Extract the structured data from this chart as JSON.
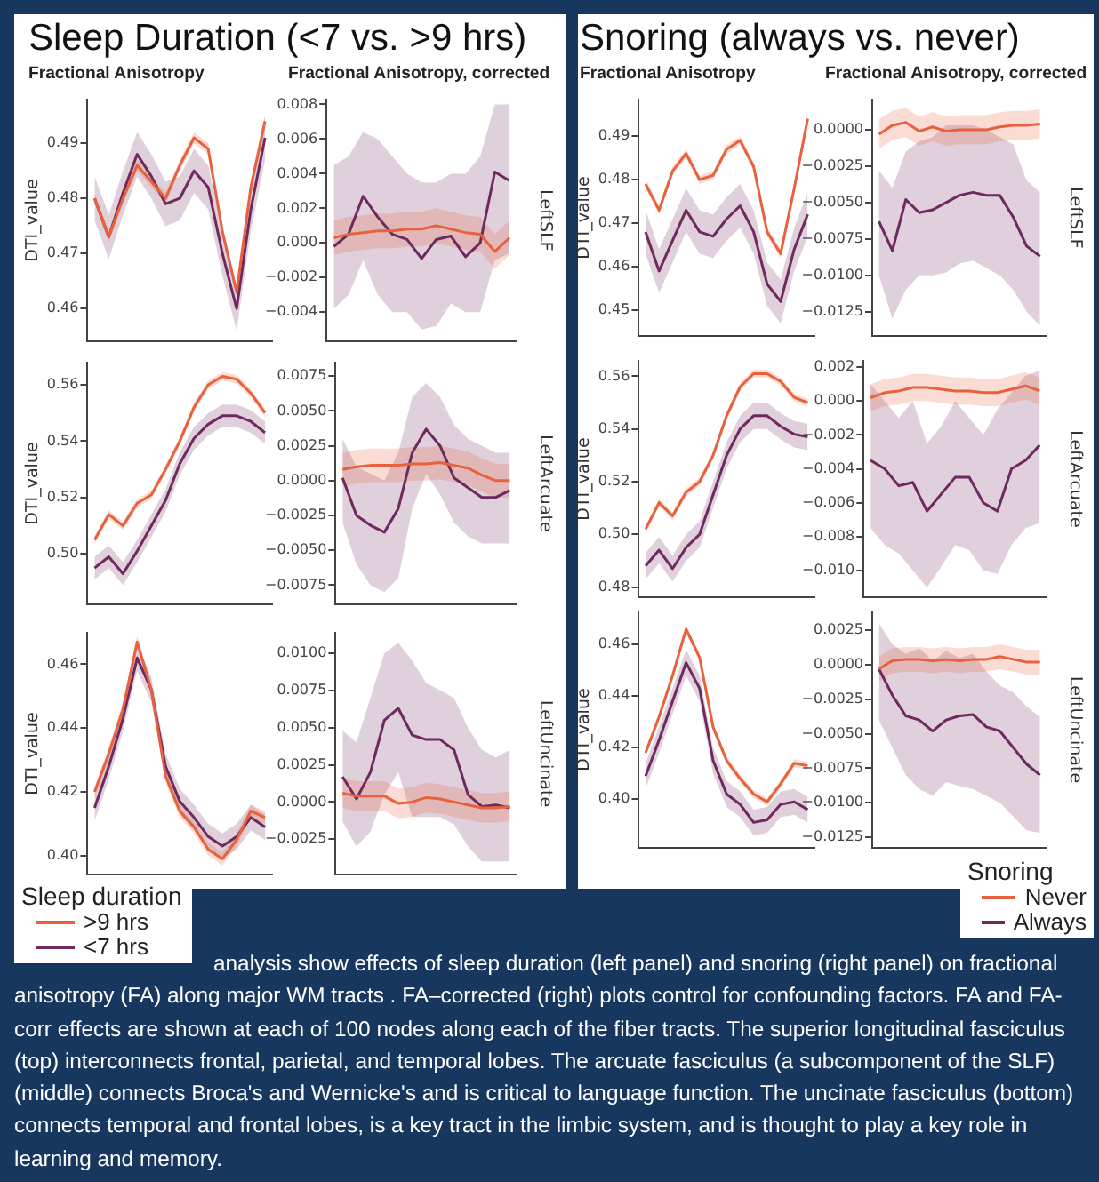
{
  "chart_data": [
    {
      "type": "line",
      "title": "Sleep Duration (<7 vs. >9 hrs)",
      "subtitle": "Fractional Anisotropy",
      "ylabel": "DTI_value",
      "categories": [
        null,
        null,
        null,
        null,
        null,
        null,
        null,
        null,
        null,
        null,
        null,
        null,
        null
      ],
      "ylim": [
        0.454,
        0.498
      ],
      "yticks": [
        0.46,
        0.47,
        0.48,
        0.49
      ],
      "series": [
        {
          "color": "#e8603c",
          "values": [
            0.48,
            0.473,
            0.48,
            0.486,
            0.483,
            0.48,
            0.486,
            0.491,
            0.489,
            0.474,
            0.463,
            0.482,
            0.494
          ],
          "lower": [
            0.479,
            0.472,
            0.479,
            0.485,
            0.482,
            0.479,
            0.485,
            0.49,
            0.488,
            0.473,
            0.462,
            0.481,
            0.493
          ],
          "upper": [
            0.481,
            0.474,
            0.481,
            0.487,
            0.484,
            0.481,
            0.487,
            0.492,
            0.49,
            0.475,
            0.464,
            0.483,
            0.495
          ]
        },
        {
          "color": "#6e2a5e",
          "values": [
            0.48,
            0.473,
            0.481,
            0.488,
            0.484,
            0.479,
            0.48,
            0.485,
            0.482,
            0.47,
            0.46,
            0.478,
            0.491
          ],
          "lower": [
            0.476,
            0.469,
            0.477,
            0.484,
            0.48,
            0.475,
            0.476,
            0.481,
            0.478,
            0.466,
            0.456,
            0.474,
            0.487
          ],
          "upper": [
            0.484,
            0.477,
            0.485,
            0.492,
            0.488,
            0.483,
            0.484,
            0.489,
            0.486,
            0.474,
            0.464,
            0.482,
            0.495
          ]
        }
      ]
    },
    {
      "type": "line",
      "subtitle": "Fractional Anisotropy, corrected",
      "y2label": "LeftSLF",
      "categories": [
        null,
        null,
        null,
        null,
        null,
        null,
        null,
        null,
        null,
        null,
        null,
        null,
        null
      ],
      "ylim": [
        -0.0057,
        0.0083
      ],
      "yticks": [
        {
          "value": -0.004,
          "label": "−0.004"
        },
        {
          "value": -0.002,
          "label": "−0.002"
        },
        {
          "value": 0,
          "label": "0.000"
        },
        0.002,
        0.004,
        0.006,
        0.008
      ],
      "series": [
        {
          "color": "#e8603c",
          "values": [
            0.0003,
            0.0005,
            0.0006,
            0.0007,
            0.0007,
            0.0008,
            0.0008,
            0.001,
            0.0008,
            0.0006,
            0.0005,
            -0.0005,
            0.0003
          ],
          "lower": [
            -0.0007,
            -0.0005,
            -0.0004,
            -0.0003,
            -0.0003,
            -0.0002,
            -0.0002,
            0.0,
            -0.0002,
            -0.0004,
            -0.0005,
            -0.0015,
            -0.0007
          ],
          "upper": [
            0.0013,
            0.0015,
            0.0016,
            0.0017,
            0.0017,
            0.0018,
            0.0018,
            0.002,
            0.0018,
            0.0016,
            0.0015,
            0.0005,
            0.0013
          ]
        },
        {
          "color": "#6e2a5e",
          "values": [
            -0.0002,
            0.0005,
            0.0027,
            0.0015,
            0.0005,
            0.0002,
            -0.0009,
            0.0002,
            0.0004,
            -0.0008,
            0.0,
            0.0041,
            0.0036
          ],
          "lower": [
            -0.0038,
            -0.003,
            -0.001,
            -0.003,
            -0.004,
            -0.004,
            -0.005,
            -0.0048,
            -0.0035,
            -0.004,
            -0.004,
            -0.001,
            -0.0006
          ],
          "upper": [
            0.0045,
            0.005,
            0.0064,
            0.006,
            0.005,
            0.004,
            0.0035,
            0.0035,
            0.004,
            0.004,
            0.005,
            0.008,
            0.008
          ]
        }
      ]
    },
    {
      "type": "line",
      "ylabel": "DTI_value",
      "categories": [
        null,
        null,
        null,
        null,
        null,
        null,
        null,
        null,
        null,
        null,
        null,
        null,
        null
      ],
      "ylim": [
        0.482,
        0.568
      ],
      "yticks": [
        {
          "value": 0.5,
          "label": "0.50"
        },
        0.52,
        0.54,
        0.56
      ],
      "series": [
        {
          "color": "#e8603c",
          "values": [
            0.505,
            0.514,
            0.51,
            0.518,
            0.521,
            0.53,
            0.54,
            0.552,
            0.56,
            0.563,
            0.562,
            0.557,
            0.55
          ],
          "lower": [
            0.5035,
            0.5125,
            0.5085,
            0.5165,
            0.5195,
            0.5285,
            0.5385,
            0.5505,
            0.5585,
            0.5615,
            0.5605,
            0.5555,
            0.5485
          ],
          "upper": [
            0.5065,
            0.5155,
            0.5115,
            0.5195,
            0.5225,
            0.5315,
            0.5415,
            0.5535,
            0.5615,
            0.5645,
            0.5635,
            0.5585,
            0.5515
          ]
        },
        {
          "color": "#6e2a5e",
          "values": [
            0.495,
            0.499,
            0.493,
            0.501,
            0.51,
            0.519,
            0.532,
            0.541,
            0.546,
            0.549,
            0.549,
            0.547,
            0.543
          ],
          "lower": [
            0.491,
            0.495,
            0.489,
            0.497,
            0.506,
            0.515,
            0.528,
            0.537,
            0.542,
            0.545,
            0.545,
            0.543,
            0.539
          ],
          "upper": [
            0.499,
            0.503,
            0.497,
            0.505,
            0.514,
            0.523,
            0.536,
            0.545,
            0.55,
            0.553,
            0.553,
            0.551,
            0.547
          ]
        }
      ]
    },
    {
      "type": "line",
      "y2label": "LeftArcuate",
      "categories": [
        null,
        null,
        null,
        null,
        null,
        null,
        null,
        null,
        null,
        null,
        null,
        null,
        null
      ],
      "ylim": [
        -0.0089,
        0.0085
      ],
      "yticks": [
        {
          "value": -0.0075,
          "label": "−0.0075"
        },
        {
          "value": -0.005,
          "label": "−0.0050"
        },
        {
          "value": -0.0025,
          "label": "−0.0025"
        },
        {
          "value": 0,
          "label": "0.0000"
        },
        0.0025,
        {
          "value": 0.005,
          "label": "0.0050"
        },
        0.0075
      ],
      "series": [
        {
          "color": "#e8603c",
          "values": [
            0.0008,
            0.001,
            0.0011,
            0.0011,
            0.0011,
            0.0012,
            0.0012,
            0.0013,
            0.0011,
            0.0009,
            0.0004,
            0.0,
            0.0
          ],
          "lower": [
            -0.0004,
            -0.0002,
            -0.0001,
            -0.0001,
            -0.0001,
            0.0,
            0.0,
            0.0001,
            -0.0001,
            -0.0003,
            -0.0008,
            -0.0012,
            -0.0012
          ],
          "upper": [
            0.002,
            0.0022,
            0.0023,
            0.0023,
            0.0023,
            0.0024,
            0.0024,
            0.0025,
            0.0023,
            0.0021,
            0.0016,
            0.0012,
            0.0012
          ]
        },
        {
          "color": "#6e2a5e",
          "values": [
            0.0002,
            -0.0025,
            -0.0032,
            -0.0037,
            -0.002,
            0.002,
            0.0037,
            0.0025,
            0.0002,
            -0.0005,
            -0.0012,
            -0.0012,
            -0.0007
          ],
          "lower": [
            -0.003,
            -0.006,
            -0.0075,
            -0.008,
            -0.007,
            -0.002,
            0.0005,
            -0.001,
            -0.003,
            -0.004,
            -0.0045,
            -0.0045,
            -0.0045
          ],
          "upper": [
            0.003,
            0.001,
            0.0005,
            0.0,
            0.002,
            0.006,
            0.007,
            0.006,
            0.004,
            0.003,
            0.0025,
            0.002,
            0.002
          ]
        }
      ]
    },
    {
      "type": "line",
      "ylabel": "DTI_value",
      "legend": "bottom left",
      "legend_title": "Sleep duration",
      "categories": [
        null,
        null,
        null,
        null,
        null,
        null,
        null,
        null,
        null,
        null,
        null,
        null,
        null
      ],
      "ylim": [
        0.394,
        0.47
      ],
      "yticks": [
        {
          "value": 0.4,
          "label": "0.40"
        },
        0.42,
        0.44,
        0.46
      ],
      "series": [
        {
          "name": ">9 hrs",
          "color": "#e8603c",
          "values": [
            0.42,
            0.432,
            0.446,
            0.467,
            0.452,
            0.425,
            0.414,
            0.409,
            0.402,
            0.399,
            0.405,
            0.414,
            0.412
          ],
          "lower": [
            0.418,
            0.43,
            0.444,
            0.465,
            0.45,
            0.423,
            0.412,
            0.407,
            0.4,
            0.397,
            0.403,
            0.412,
            0.41
          ],
          "upper": [
            0.422,
            0.434,
            0.448,
            0.469,
            0.454,
            0.427,
            0.416,
            0.411,
            0.404,
            0.401,
            0.407,
            0.416,
            0.414
          ]
        },
        {
          "name": "<7 hrs",
          "color": "#6e2a5e",
          "values": [
            0.415,
            0.428,
            0.443,
            0.462,
            0.452,
            0.428,
            0.417,
            0.412,
            0.406,
            0.403,
            0.406,
            0.412,
            0.409
          ],
          "lower": [
            0.411,
            0.424,
            0.439,
            0.458,
            0.448,
            0.424,
            0.413,
            0.408,
            0.402,
            0.399,
            0.402,
            0.408,
            0.405
          ],
          "upper": [
            0.419,
            0.432,
            0.447,
            0.466,
            0.456,
            0.432,
            0.421,
            0.416,
            0.41,
            0.407,
            0.41,
            0.416,
            0.413
          ]
        }
      ]
    },
    {
      "type": "line",
      "y2label": "LeftUncinate",
      "categories": [
        null,
        null,
        null,
        null,
        null,
        null,
        null,
        null,
        null,
        null,
        null,
        null,
        null
      ],
      "ylim": [
        -0.0049,
        0.0114
      ],
      "yticks": [
        {
          "value": -0.0025,
          "label": "−0.0025"
        },
        {
          "value": 0,
          "label": "0.0000"
        },
        0.0025,
        {
          "value": 0.005,
          "label": "0.0050"
        },
        0.0075,
        {
          "value": 0.01,
          "label": "0.0100"
        }
      ],
      "series": [
        {
          "color": "#e8603c",
          "values": [
            0.0006,
            0.0004,
            0.0004,
            0.0004,
            -0.0001,
            0.0,
            0.0003,
            0.0002,
            0.0,
            -0.0002,
            -0.0004,
            -0.0004,
            -0.0003
          ],
          "lower": [
            -0.0004,
            -0.0006,
            -0.0006,
            -0.0006,
            -0.0011,
            -0.001,
            -0.0007,
            -0.0008,
            -0.001,
            -0.0012,
            -0.0014,
            -0.0014,
            -0.0013
          ],
          "upper": [
            0.0016,
            0.0014,
            0.0014,
            0.0014,
            0.0009,
            0.001,
            0.0013,
            0.0012,
            0.001,
            0.0008,
            0.0006,
            0.0006,
            0.0007
          ]
        },
        {
          "color": "#6e2a5e",
          "values": [
            0.0017,
            0.0002,
            0.002,
            0.0055,
            0.0063,
            0.0045,
            0.0042,
            0.0042,
            0.0035,
            0.0005,
            -0.0003,
            -0.0002,
            -0.0004
          ],
          "lower": [
            -0.0013,
            -0.003,
            -0.002,
            0.0005,
            0.002,
            -0.001,
            -0.001,
            -0.001,
            -0.0015,
            -0.003,
            -0.004,
            -0.004,
            -0.004
          ],
          "upper": [
            0.0048,
            0.004,
            0.007,
            0.01,
            0.0107,
            0.0095,
            0.008,
            0.0075,
            0.007,
            0.005,
            0.0035,
            0.003,
            0.0035
          ]
        }
      ]
    },
    {
      "type": "line",
      "title": "Snoring (always vs. never)",
      "subtitle": "Fractional Anisotropy",
      "ylabel": "DTI_value",
      "categories": [
        null,
        null,
        null,
        null,
        null,
        null,
        null,
        null,
        null,
        null,
        null,
        null,
        null
      ],
      "ylim": [
        0.444,
        0.4985
      ],
      "yticks": [
        0.45,
        0.46,
        0.47,
        0.48,
        0.49
      ],
      "series": [
        {
          "color": "#e8603c",
          "values": [
            0.479,
            0.473,
            0.482,
            0.486,
            0.48,
            0.481,
            0.487,
            0.489,
            0.483,
            0.468,
            0.463,
            0.478,
            0.494
          ],
          "lower": [
            0.478,
            0.472,
            0.481,
            0.485,
            0.479,
            0.48,
            0.486,
            0.488,
            0.482,
            0.467,
            0.462,
            0.477,
            0.493
          ],
          "upper": [
            0.48,
            0.474,
            0.483,
            0.487,
            0.481,
            0.482,
            0.488,
            0.49,
            0.484,
            0.469,
            0.464,
            0.479,
            0.495
          ]
        },
        {
          "color": "#6e2a5e",
          "values": [
            0.468,
            0.459,
            0.466,
            0.473,
            0.468,
            0.467,
            0.471,
            0.474,
            0.468,
            0.456,
            0.452,
            0.464,
            0.472
          ],
          "lower": [
            0.463,
            0.454,
            0.461,
            0.468,
            0.463,
            0.462,
            0.466,
            0.469,
            0.463,
            0.451,
            0.447,
            0.459,
            0.467
          ],
          "upper": [
            0.473,
            0.464,
            0.471,
            0.478,
            0.473,
            0.472,
            0.476,
            0.479,
            0.473,
            0.461,
            0.457,
            0.469,
            0.477
          ]
        }
      ]
    },
    {
      "type": "line",
      "subtitle": "Fractional Anisotropy, corrected",
      "y2label": "LeftSLF",
      "categories": [
        null,
        null,
        null,
        null,
        null,
        null,
        null,
        null,
        null,
        null,
        null,
        null,
        null
      ],
      "ylim": [
        -0.0142,
        0.0021
      ],
      "yticks": [
        {
          "value": -0.0125,
          "label": "−0.0125"
        },
        {
          "value": -0.01,
          "label": "−0.0100"
        },
        {
          "value": -0.0075,
          "label": "−0.0075"
        },
        {
          "value": -0.005,
          "label": "−0.0050"
        },
        {
          "value": -0.0025,
          "label": "−0.0025"
        },
        {
          "value": 0,
          "label": "0.0000"
        }
      ],
      "series": [
        {
          "color": "#e8603c",
          "values": [
            -0.0003,
            0.0003,
            0.0005,
            -0.0001,
            0.0002,
            -0.0001,
            0.0,
            0.0,
            0.0,
            0.0002,
            0.0003,
            0.0003,
            0.0004
          ],
          "lower": [
            -0.0013,
            -0.0007,
            -0.0005,
            -0.0011,
            -0.0008,
            -0.0011,
            -0.001,
            -0.001,
            -0.001,
            -0.0008,
            -0.0007,
            -0.0007,
            -0.0006
          ],
          "upper": [
            0.0007,
            0.0013,
            0.0015,
            0.0009,
            0.0012,
            0.0009,
            0.001,
            0.001,
            0.001,
            0.0012,
            0.0013,
            0.0013,
            0.0014
          ]
        },
        {
          "color": "#6e2a5e",
          "values": [
            -0.0063,
            -0.0083,
            -0.0048,
            -0.0057,
            -0.0055,
            -0.005,
            -0.0045,
            -0.0043,
            -0.0045,
            -0.0045,
            -0.006,
            -0.008,
            -0.0087
          ],
          "lower": [
            -0.01,
            -0.013,
            -0.011,
            -0.01,
            -0.01,
            -0.0098,
            -0.0092,
            -0.009,
            -0.0095,
            -0.01,
            -0.011,
            -0.0125,
            -0.0135
          ],
          "upper": [
            -0.0028,
            -0.004,
            -0.0015,
            -0.0008,
            -0.0005,
            0.0003,
            0.0003,
            0.0003,
            0.0,
            -0.0005,
            -0.001,
            -0.0035,
            -0.0043
          ]
        }
      ]
    },
    {
      "type": "line",
      "ylabel": "DTI_value",
      "categories": [
        null,
        null,
        null,
        null,
        null,
        null,
        null,
        null,
        null,
        null,
        null,
        null,
        null
      ],
      "ylim": [
        0.476,
        0.566
      ],
      "yticks": [
        0.48,
        {
          "value": 0.5,
          "label": "0.50"
        },
        0.52,
        0.54,
        0.56
      ],
      "series": [
        {
          "color": "#e8603c",
          "values": [
            0.502,
            0.512,
            0.507,
            0.516,
            0.52,
            0.53,
            0.545,
            0.556,
            0.561,
            0.561,
            0.558,
            0.552,
            0.55
          ],
          "lower": [
            0.5005,
            0.5105,
            0.5055,
            0.5145,
            0.5185,
            0.5285,
            0.5435,
            0.5545,
            0.5595,
            0.5595,
            0.5565,
            0.5505,
            0.5485
          ],
          "upper": [
            0.5035,
            0.5135,
            0.5085,
            0.5175,
            0.5215,
            0.5315,
            0.5465,
            0.5575,
            0.5625,
            0.5625,
            0.5595,
            0.5535,
            0.5515
          ]
        },
        {
          "color": "#6e2a5e",
          "values": [
            0.488,
            0.494,
            0.487,
            0.495,
            0.5,
            0.515,
            0.53,
            0.54,
            0.545,
            0.545,
            0.541,
            0.538,
            0.537
          ],
          "lower": [
            0.483,
            0.489,
            0.482,
            0.49,
            0.495,
            0.51,
            0.525,
            0.535,
            0.54,
            0.54,
            0.536,
            0.533,
            0.532
          ],
          "upper": [
            0.493,
            0.499,
            0.492,
            0.5,
            0.505,
            0.52,
            0.535,
            0.545,
            0.55,
            0.55,
            0.546,
            0.543,
            0.542
          ]
        }
      ]
    },
    {
      "type": "line",
      "y2label": "LeftArcuate",
      "categories": [
        null,
        null,
        null,
        null,
        null,
        null,
        null,
        null,
        null,
        null,
        null,
        null,
        null
      ],
      "ylim": [
        -0.0116,
        0.0024
      ],
      "yticks": [
        {
          "value": -0.01,
          "label": "−0.010"
        },
        {
          "value": -0.008,
          "label": "−0.008"
        },
        {
          "value": -0.006,
          "label": "−0.006"
        },
        {
          "value": -0.004,
          "label": "−0.004"
        },
        {
          "value": -0.002,
          "label": "−0.002"
        },
        {
          "value": 0,
          "label": "0.000"
        },
        0.002
      ],
      "series": [
        {
          "color": "#e8603c",
          "values": [
            0.0002,
            0.0005,
            0.0006,
            0.0008,
            0.0008,
            0.0007,
            0.0006,
            0.0006,
            0.0005,
            0.0005,
            0.0007,
            0.0009,
            0.0006
          ],
          "lower": [
            -0.0006,
            -0.0003,
            -0.0002,
            0.0,
            0.0,
            -0.0001,
            -0.0002,
            -0.0002,
            -0.0003,
            -0.0003,
            -0.0001,
            0.0001,
            -0.0002
          ],
          "upper": [
            0.001,
            0.0013,
            0.0014,
            0.0016,
            0.0016,
            0.0015,
            0.0014,
            0.0014,
            0.0013,
            0.0013,
            0.0015,
            0.0017,
            0.0014
          ]
        },
        {
          "color": "#6e2a5e",
          "values": [
            -0.0035,
            -0.004,
            -0.005,
            -0.0048,
            -0.0065,
            -0.0055,
            -0.0045,
            -0.0045,
            -0.006,
            -0.0065,
            -0.004,
            -0.0035,
            -0.0026
          ],
          "lower": [
            -0.0075,
            -0.0085,
            -0.009,
            -0.01,
            -0.011,
            -0.0098,
            -0.0085,
            -0.0088,
            -0.01,
            -0.0102,
            -0.0085,
            -0.0075,
            -0.0072
          ],
          "upper": [
            0.001,
            0.0,
            -0.001,
            0.0,
            -0.0025,
            -0.0015,
            0.0,
            -0.001,
            -0.002,
            -0.0005,
            0.0005,
            0.0015,
            0.0018
          ]
        }
      ]
    },
    {
      "type": "line",
      "ylabel": "DTI_value",
      "categories": [
        null,
        null,
        null,
        null,
        null,
        null,
        null,
        null,
        null,
        null,
        null,
        null,
        null
      ],
      "ylim": [
        0.381,
        0.473
      ],
      "yticks": [
        {
          "value": 0.4,
          "label": "0.40"
        },
        0.42,
        0.44,
        0.46
      ],
      "series": [
        {
          "color": "#e8603c",
          "values": [
            0.418,
            0.432,
            0.448,
            0.466,
            0.455,
            0.428,
            0.415,
            0.408,
            0.402,
            0.399,
            0.406,
            0.414,
            0.413
          ],
          "lower": [
            0.4165,
            0.4305,
            0.4465,
            0.4645,
            0.4535,
            0.4265,
            0.4135,
            0.4065,
            0.4005,
            0.3975,
            0.4045,
            0.4125,
            0.4115
          ],
          "upper": [
            0.4195,
            0.4335,
            0.4495,
            0.4675,
            0.4565,
            0.4295,
            0.4165,
            0.4095,
            0.4035,
            0.4005,
            0.4075,
            0.4155,
            0.4145
          ]
        },
        {
          "color": "#6e2a5e",
          "values": [
            0.409,
            0.423,
            0.438,
            0.453,
            0.443,
            0.415,
            0.402,
            0.398,
            0.391,
            0.392,
            0.398,
            0.399,
            0.396
          ],
          "lower": [
            0.404,
            0.418,
            0.433,
            0.448,
            0.438,
            0.41,
            0.397,
            0.393,
            0.386,
            0.387,
            0.393,
            0.394,
            0.391
          ],
          "upper": [
            0.414,
            0.428,
            0.443,
            0.458,
            0.448,
            0.42,
            0.407,
            0.403,
            0.396,
            0.397,
            0.403,
            0.404,
            0.401
          ]
        }
      ]
    },
    {
      "type": "line",
      "y2label": "LeftUncinate",
      "legend": "bottom right",
      "legend_title": "Snoring",
      "annotations": [
        "analysis show effects of sleep duration (left panel) and snoring (right panel) on fractional anisotropy (FA) along major WM tracts . FA–corrected (right) plots  control for confounding factors. FA and FA-corr effects are shown at each of 100 nodes along each of the fiber tracts. The superior longitudinal fasciculus (top) interconnects frontal, parietal, and temporal lobes. The arcuate fasciculus (a subcomponent of the SLF) (middle) connects Broca's and Wernicke's and is critical to  language function. The uncinate fasciculus (bottom) connects temporal and frontal lobes, is a key tract in the limbic system, and is thought to play a key role in learning and memory."
      ],
      "categories": [
        null,
        null,
        null,
        null,
        null,
        null,
        null,
        null,
        null,
        null,
        null,
        null,
        null
      ],
      "ylim": [
        -0.0133,
        0.0039
      ],
      "yticks": [
        {
          "value": -0.0125,
          "label": "−0.0125"
        },
        {
          "value": -0.01,
          "label": "−0.0100"
        },
        {
          "value": -0.0075,
          "label": "−0.0075"
        },
        {
          "value": -0.005,
          "label": "−0.0050"
        },
        {
          "value": -0.0025,
          "label": "−0.0025"
        },
        {
          "value": 0,
          "label": "0.0000"
        },
        0.0025
      ],
      "series": [
        {
          "name": "Never",
          "color": "#e8603c",
          "values": [
            -0.0003,
            0.0003,
            0.0004,
            0.0004,
            0.0003,
            0.0004,
            0.0003,
            0.0004,
            0.0004,
            0.0006,
            0.0004,
            0.0002,
            0.0002
          ],
          "lower": [
            -0.0012,
            -0.0006,
            -0.0005,
            -0.0005,
            -0.0006,
            -0.0005,
            -0.0006,
            -0.0005,
            -0.0005,
            -0.0003,
            -0.0005,
            -0.0007,
            -0.0007
          ],
          "upper": [
            0.0006,
            0.0012,
            0.0013,
            0.0013,
            0.0012,
            0.0013,
            0.0012,
            0.0013,
            0.0013,
            0.0015,
            0.0013,
            0.0011,
            0.0011
          ]
        },
        {
          "name": "Always",
          "color": "#6e2a5e",
          "values": [
            -0.0003,
            -0.0022,
            -0.0037,
            -0.004,
            -0.0048,
            -0.004,
            -0.0037,
            -0.0036,
            -0.0045,
            -0.0048,
            -0.006,
            -0.0072,
            -0.008
          ],
          "lower": [
            -0.004,
            -0.006,
            -0.008,
            -0.009,
            -0.0095,
            -0.0085,
            -0.0088,
            -0.009,
            -0.0095,
            -0.01,
            -0.011,
            -0.012,
            -0.0122
          ],
          "upper": [
            0.003,
            0.0015,
            0.0008,
            0.0012,
            0.0003,
            0.001,
            0.0005,
            0.0008,
            -0.0005,
            -0.0015,
            -0.002,
            -0.003,
            -0.0038
          ]
        }
      ]
    }
  ]
}
